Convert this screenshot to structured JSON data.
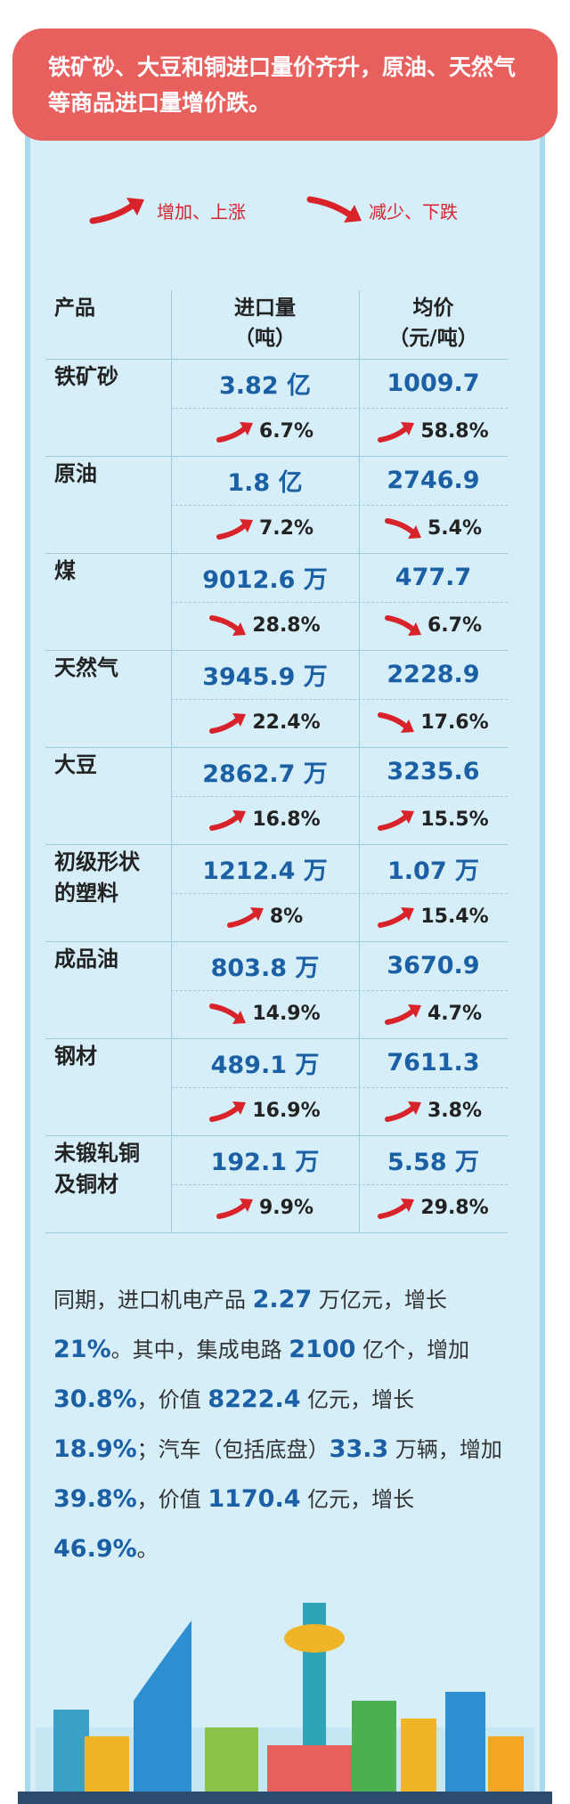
{
  "header": {
    "title": "铁矿砂、大豆和铜进口量价齐升，原油、天然气等商品进口量增价跌。"
  },
  "legend": {
    "up": "增加、上涨",
    "down": "减少、下跌"
  },
  "table": {
    "columns": [
      [
        "产品"
      ],
      [
        "进口量",
        "（吨）"
      ],
      [
        "均价",
        "（元/吨）"
      ]
    ],
    "rows": [
      {
        "name": [
          "铁矿砂"
        ],
        "volume": "3.82 亿",
        "volume_change": "6.7%",
        "volume_trend": "up",
        "price": "1009.7",
        "price_change": "58.8%",
        "price_trend": "up"
      },
      {
        "name": [
          "原油"
        ],
        "volume": "1.8 亿",
        "volume_change": "7.2%",
        "volume_trend": "up",
        "price": "2746.9",
        "price_change": "5.4%",
        "price_trend": "down"
      },
      {
        "name": [
          "煤"
        ],
        "volume": "9012.6 万",
        "volume_change": "28.8%",
        "volume_trend": "down",
        "price": "477.7",
        "price_change": "6.7%",
        "price_trend": "down"
      },
      {
        "name": [
          "天然气"
        ],
        "volume": "3945.9 万",
        "volume_change": "22.4%",
        "volume_trend": "up",
        "price": "2228.9",
        "price_change": "17.6%",
        "price_trend": "down"
      },
      {
        "name": [
          "大豆"
        ],
        "volume": "2862.7 万",
        "volume_change": "16.8%",
        "volume_trend": "up",
        "price": "3235.6",
        "price_change": "15.5%",
        "price_trend": "up"
      },
      {
        "name": [
          "初级形状",
          "的塑料"
        ],
        "volume": "1212.4 万",
        "volume_change": "8%",
        "volume_trend": "up",
        "price": "1.07 万",
        "price_change": "15.4%",
        "price_trend": "up"
      },
      {
        "name": [
          "成品油"
        ],
        "volume": "803.8 万",
        "volume_change": "14.9%",
        "volume_trend": "down",
        "price": "3670.9",
        "price_change": "4.7%",
        "price_trend": "up"
      },
      {
        "name": [
          "钢材"
        ],
        "volume": "489.1 万",
        "volume_change": "16.9%",
        "volume_trend": "up",
        "price": "7611.3",
        "price_change": "3.8%",
        "price_trend": "up"
      },
      {
        "name": [
          "未锻轧铜",
          "及铜材"
        ],
        "volume": "192.1 万",
        "volume_change": "9.9%",
        "volume_trend": "up",
        "price": "5.58 万",
        "price_change": "29.8%",
        "price_trend": "up"
      }
    ]
  },
  "paragraph": {
    "runs": [
      {
        "text": "同期，进口机电产品 ",
        "bold": false
      },
      {
        "text": "2.27",
        "bold": true
      },
      {
        "text": " 万亿元，增长 ",
        "bold": false
      },
      {
        "text": "21%",
        "bold": true
      },
      {
        "text": "。其中，集成电路 ",
        "bold": false
      },
      {
        "text": "2100",
        "bold": true
      },
      {
        "text": " 亿个，增加 ",
        "bold": false
      },
      {
        "text": "30.8%",
        "bold": true
      },
      {
        "text": "，价值 ",
        "bold": false
      },
      {
        "text": "8222.4",
        "bold": true
      },
      {
        "text": " 亿元，增长 ",
        "bold": false
      },
      {
        "text": "18.9%",
        "bold": true
      },
      {
        "text": "；汽车（包括底盘）",
        "bold": false
      },
      {
        "text": "33.3",
        "bold": true
      },
      {
        "text": " 万辆，增加 ",
        "bold": false
      },
      {
        "text": "39.8%",
        "bold": true
      },
      {
        "text": "，价值 ",
        "bold": false
      },
      {
        "text": "1170.4",
        "bold": true
      },
      {
        "text": " 亿元，增长 ",
        "bold": false
      },
      {
        "text": "46.9%",
        "bold": true
      },
      {
        "text": "。",
        "bold": false
      }
    ]
  }
}
